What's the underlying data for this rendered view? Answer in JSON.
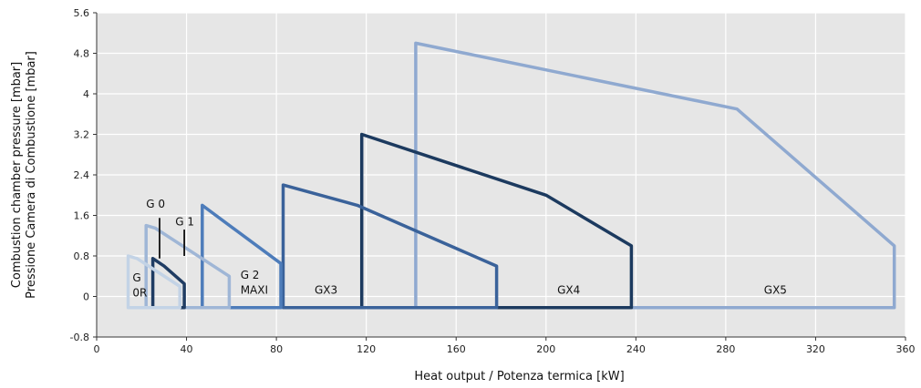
{
  "chart_data": {
    "type": "line",
    "title": "",
    "xlabel": "Heat output / Potenza termica [kW]",
    "ylabel_line1": "Combustion chamber pressure [mbar]",
    "ylabel_line2": "Pressione Camera di Combustione [mbar]",
    "xlim": [
      0,
      360
    ],
    "ylim": [
      -0.8,
      5.6
    ],
    "xticks": [
      0,
      40,
      80,
      120,
      160,
      200,
      240,
      280,
      320,
      360
    ],
    "yticks": [
      -0.8,
      0,
      0.8,
      1.6,
      2.4,
      3.2,
      4,
      4.8,
      5.6
    ],
    "ytick_labels": [
      "-0.8",
      "0",
      "0.8",
      "1.6",
      "2.4",
      "3.2",
      "4",
      "4.8",
      "5.6"
    ],
    "grid": true,
    "series": [
      {
        "name": "G 0R",
        "color": "#c3d3e6",
        "points": [
          [
            14,
            -0.22
          ],
          [
            14,
            0.8
          ],
          [
            18,
            0.75
          ],
          [
            37,
            0.2
          ],
          [
            37,
            -0.22
          ],
          [
            14,
            -0.22
          ]
        ]
      },
      {
        "name": "G 0",
        "color": "#1f3c63",
        "points": [
          [
            25,
            -0.22
          ],
          [
            25,
            0.75
          ],
          [
            30,
            0.6
          ],
          [
            39,
            0.25
          ],
          [
            39,
            -0.22
          ],
          [
            25,
            -0.22
          ]
        ]
      },
      {
        "name": "G 1",
        "color": "#9fb6d6",
        "points": [
          [
            22,
            -0.22
          ],
          [
            22,
            1.4
          ],
          [
            26,
            1.35
          ],
          [
            59,
            0.4
          ],
          [
            59,
            -0.22
          ],
          [
            22,
            -0.22
          ]
        ]
      },
      {
        "name": "G 2 MAXI",
        "color": "#4d7cba",
        "points": [
          [
            47,
            -0.22
          ],
          [
            47,
            1.8
          ],
          [
            82,
            0.65
          ],
          [
            82,
            -0.22
          ],
          [
            47,
            -0.22
          ]
        ]
      },
      {
        "name": "GX3",
        "color": "#3a629a",
        "points": [
          [
            83,
            -0.22
          ],
          [
            83,
            2.2
          ],
          [
            116,
            1.8
          ],
          [
            178,
            0.6
          ],
          [
            178,
            -0.22
          ],
          [
            83,
            -0.22
          ]
        ]
      },
      {
        "name": "GX4",
        "color": "#1c3a5f",
        "points": [
          [
            118,
            -0.22
          ],
          [
            118,
            3.2
          ],
          [
            200,
            2.0
          ],
          [
            238,
            1.0
          ],
          [
            238,
            -0.22
          ],
          [
            118,
            -0.22
          ]
        ]
      },
      {
        "name": "GX5",
        "color": "#8fa9d0",
        "points": [
          [
            142,
            -0.22
          ],
          [
            142,
            5.0
          ],
          [
            285,
            3.7
          ],
          [
            355,
            1.0
          ],
          [
            355,
            -0.22
          ],
          [
            142,
            -0.22
          ]
        ]
      }
    ],
    "labels": [
      {
        "text": "G",
        "x": 16,
        "y": 0.3
      },
      {
        "text": "0R",
        "x": 16,
        "y": 0.0
      },
      {
        "text": "G 0",
        "x": 22,
        "y": 1.75
      },
      {
        "text": "G 1",
        "x": 35,
        "y": 1.4
      },
      {
        "text": "G 2",
        "x": 64,
        "y": 0.35
      },
      {
        "text": "MAXI",
        "x": 64,
        "y": 0.05
      },
      {
        "text": "GX3",
        "x": 97,
        "y": 0.05
      },
      {
        "text": "GX4",
        "x": 205,
        "y": 0.05
      },
      {
        "text": "GX5",
        "x": 297,
        "y": 0.05
      }
    ],
    "callout_lines": [
      {
        "x": 28,
        "y1": 1.55,
        "y2": 0.75,
        "color": "#111111"
      },
      {
        "x": 39,
        "y1": 1.32,
        "y2": 0.8,
        "color": "#111111"
      }
    ]
  }
}
